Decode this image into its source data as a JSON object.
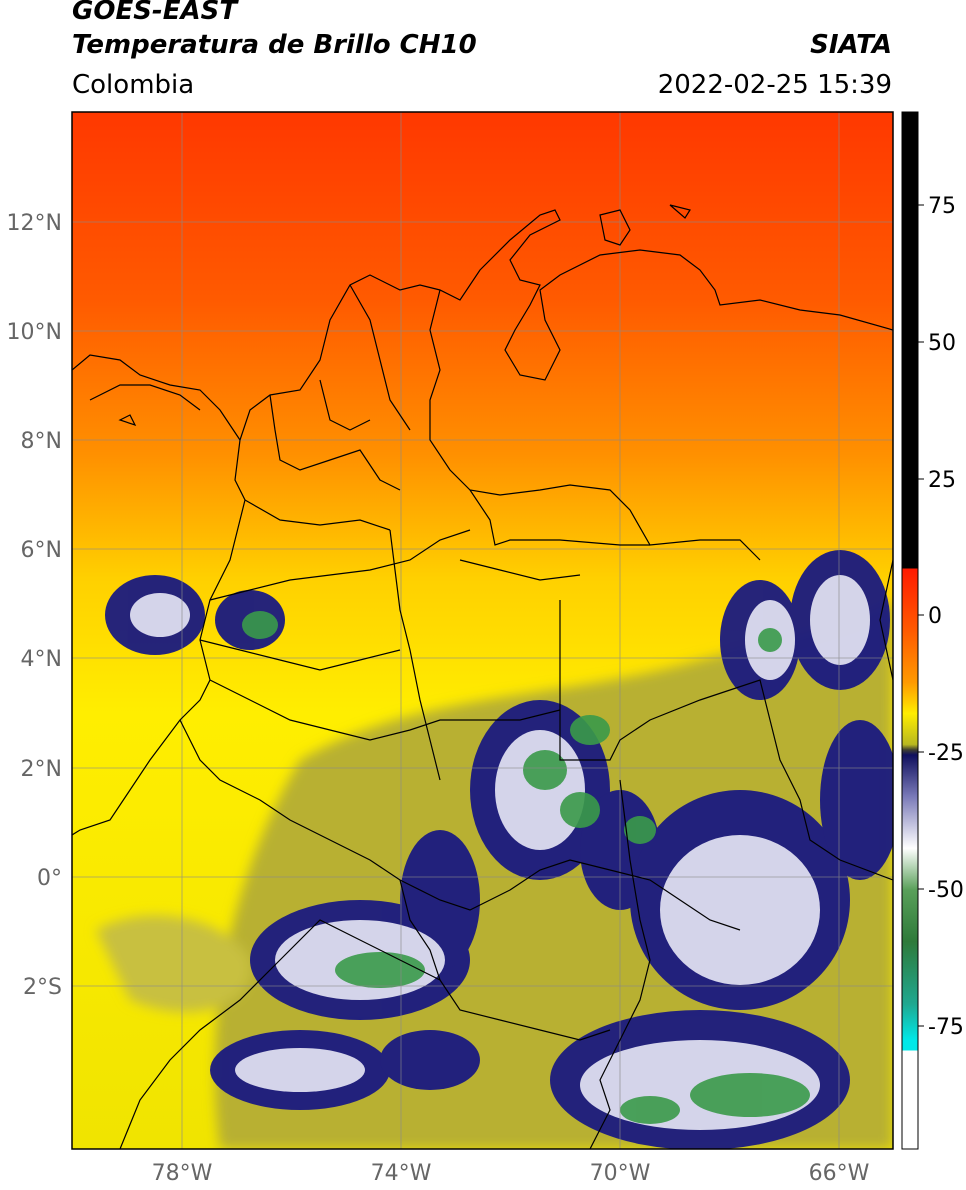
{
  "header": {
    "satellite": "GOES-EAST",
    "product": "Temperatura de Brillo CH10",
    "region": "Colombia",
    "source": "SIATA",
    "datetime": "2022-02-25 15:39"
  },
  "axes": {
    "lat_labels": [
      "12°N",
      "10°N",
      "8°N",
      "6°N",
      "4°N",
      "2°N",
      "0°",
      "2°S"
    ],
    "lon_labels": [
      "78°W",
      "74°W",
      "70°W",
      "66°W"
    ]
  },
  "colorbar": {
    "ticks": [
      "75",
      "50",
      "25",
      "0",
      "-25",
      "-50",
      "-75"
    ],
    "colors": {
      "black": "#000000",
      "red": "#ff1a00",
      "orange": "#ff8c00",
      "yellow": "#ffee00",
      "olive": "#8a8a1e",
      "navy": "#10105e",
      "white": "#ffffff",
      "green": "#2e8a3a",
      "teal": "#20b89a",
      "cyan": "#00e0e0"
    }
  },
  "colors": {
    "warm_top": "#ff3a00",
    "mid": "#ff9a00",
    "yellow": "#ffe000",
    "olive": "#b8b830",
    "cloud_navy": "#1a1a7a",
    "cloud_white": "#e8e8f4",
    "cloud_green": "#3a9a48",
    "grid": "#808080",
    "border": "#000000"
  }
}
